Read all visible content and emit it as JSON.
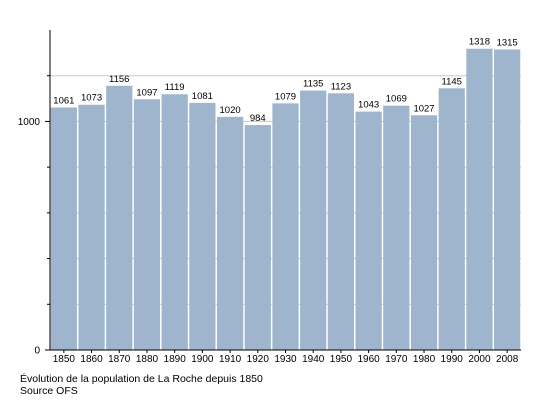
{
  "chart_data": {
    "type": "bar",
    "categories": [
      "1850",
      "1860",
      "1870",
      "1880",
      "1890",
      "1900",
      "1910",
      "1920",
      "1930",
      "1940",
      "1950",
      "1960",
      "1970",
      "1980",
      "1990",
      "2000",
      "2008"
    ],
    "values": [
      1061,
      1073,
      1156,
      1097,
      1119,
      1081,
      1020,
      984,
      1079,
      1135,
      1123,
      1043,
      1069,
      1027,
      1145,
      1318,
      1315
    ],
    "ylim": [
      0,
      1400
    ],
    "y_ticks": [
      {
        "value": 0,
        "label": "0"
      },
      {
        "value": 1000,
        "label": "1000"
      }
    ],
    "y_minor_ticks": [
      200,
      400,
      600,
      800,
      1200
    ],
    "grid": true,
    "bar_color": "#9eb5cd",
    "grid_color": "#c8c8c8",
    "title": "",
    "xlabel": "",
    "ylabel": ""
  },
  "caption": {
    "line1": "Évolution de la population de La Roche depuis 1850",
    "line2": "Source OFS"
  }
}
